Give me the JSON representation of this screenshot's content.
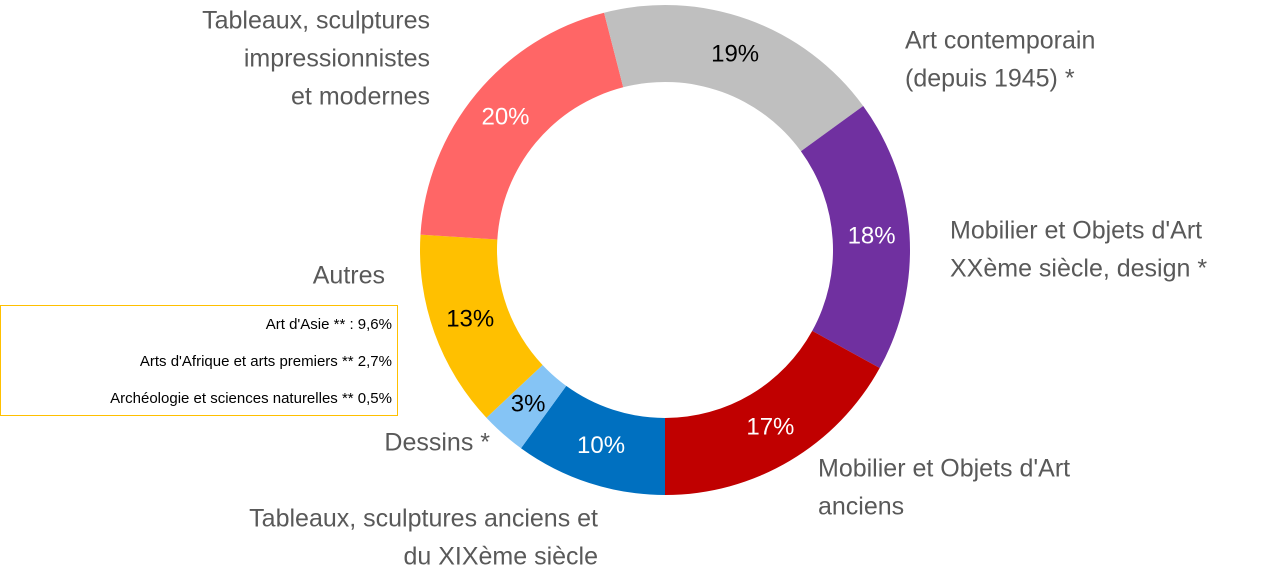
{
  "chart_data": {
    "type": "donut",
    "categories": [
      [
        "Tableaux, sculptures anciens et",
        "du XIXème siècle"
      ],
      [
        "Dessins  *"
      ],
      [
        "Autres"
      ],
      [
        "Tableaux, sculptures",
        "impressionnistes",
        "et modernes"
      ],
      [
        "Art contemporain",
        "(depuis 1945) *"
      ],
      [
        "Mobilier et Objets d'Art",
        "XXème siècle, design *"
      ],
      [
        "Mobilier et Objets d'Art",
        "anciens"
      ]
    ],
    "values": [
      10,
      3,
      13,
      20,
      19,
      18,
      17
    ],
    "value_labels": [
      "10%",
      "3%",
      "13%",
      "20%",
      "19%",
      "18%",
      "17%"
    ],
    "colors": [
      "#0070C0",
      "#85C4F5",
      "#FFC000",
      "#FF6666",
      "#BFBFBF",
      "#7030A0",
      "#C00000"
    ],
    "value_label_colors": [
      "#FFFFFF",
      "#000000",
      "#000000",
      "#FFFFFF",
      "#000000",
      "#FFFFFF",
      "#FFFFFF"
    ],
    "annotation": [
      "Art d'Asie ** : 9,6%",
      "Arts d'Afrique et arts premiers  ** 2,7%",
      "Archéologie et sciences naturelles ** 0,5%"
    ]
  }
}
